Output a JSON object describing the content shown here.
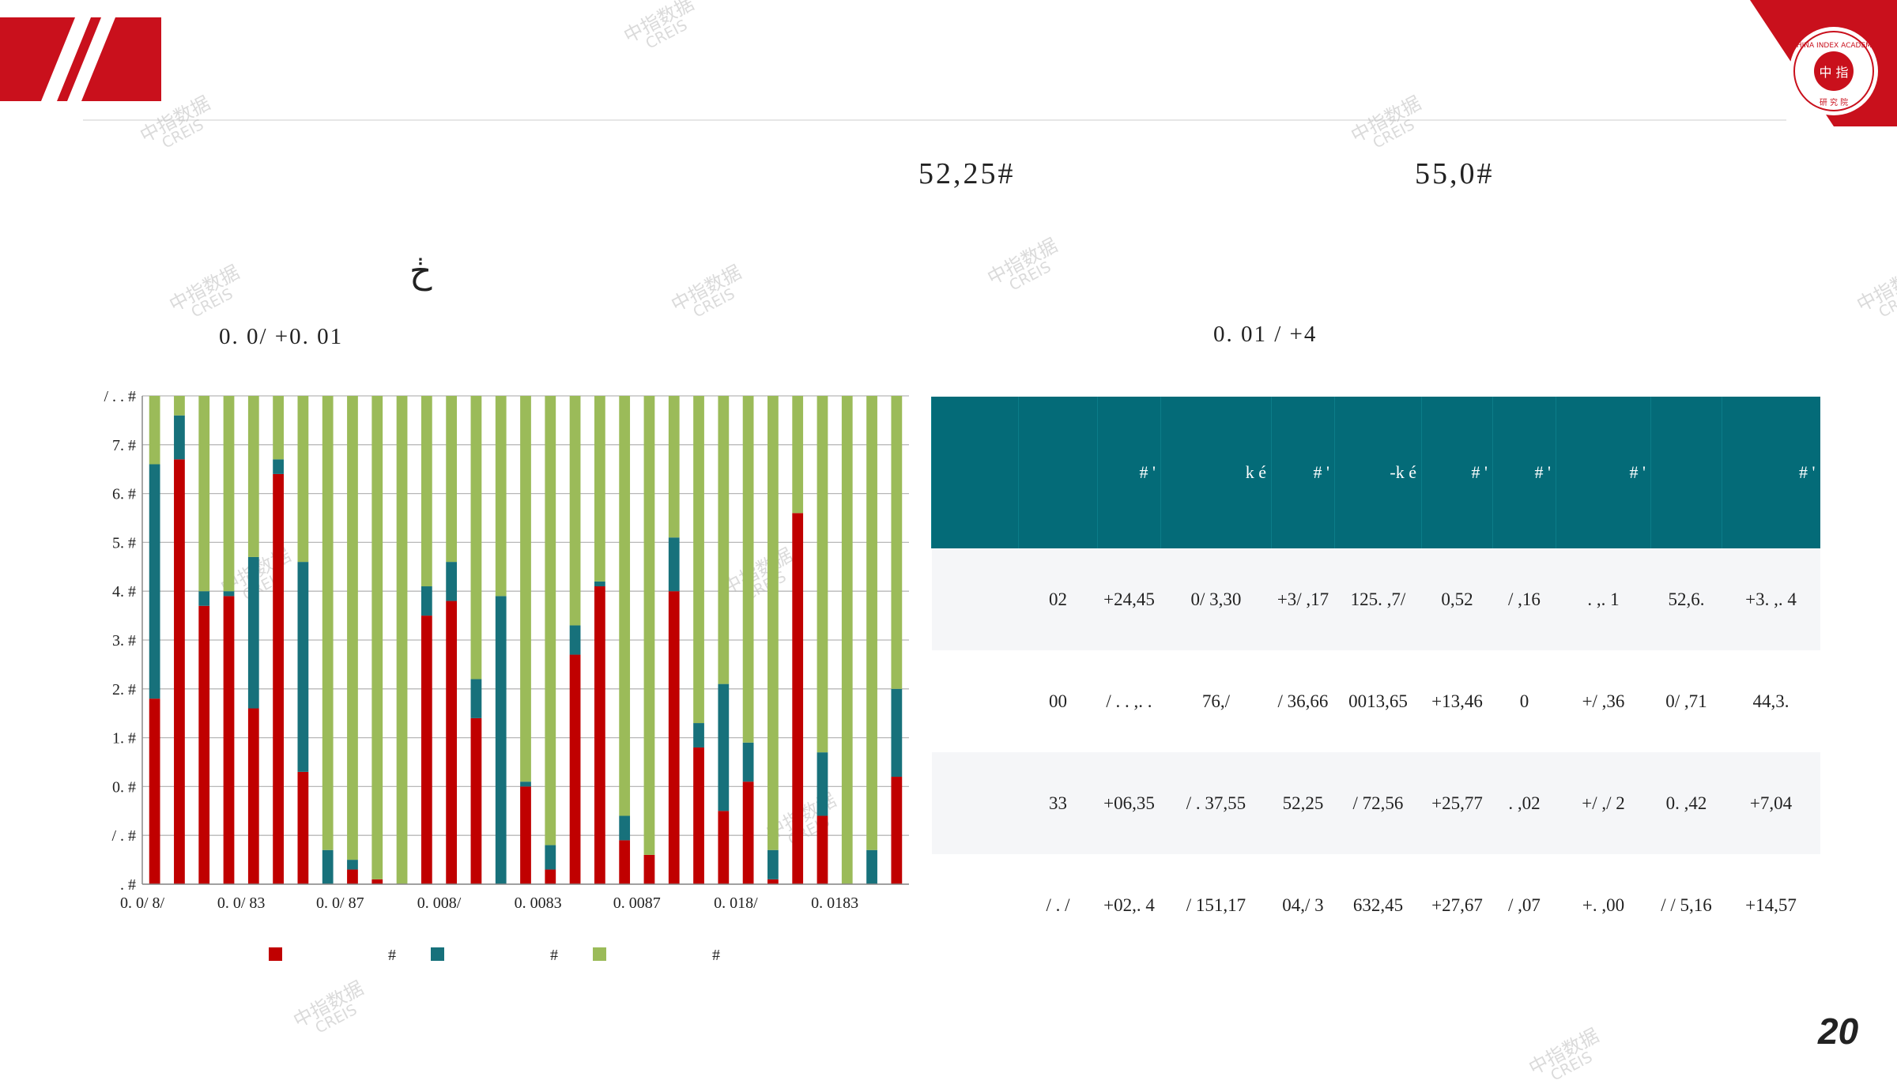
{
  "slide": {
    "stat_left": "52,25#",
    "stat_right": "55,0#",
    "glyph": "ڂ",
    "chart_subtitle": "0. 0/ +0. 01",
    "table_subtitle": "0. 01 / +4",
    "page_number": "20"
  },
  "watermark": {
    "cn": "中指数据",
    "en": "CREIS"
  },
  "badge": {
    "ring_text": "CHINA INDEX ACADEMY",
    "bottom_text": "研 究 院",
    "center_text": "中 指"
  },
  "colors": {
    "red": "#c00000",
    "teal": "#17717b",
    "green": "#9bbb59",
    "table_header": "#046b78",
    "brand_red": "#c9101c"
  },
  "chart_data": {
    "type": "bar",
    "stacked": true,
    "y_tick_labels": [
      ". #",
      "/ . #",
      "0. #",
      "1. #",
      "2. #",
      "3. #",
      "4. #",
      "5. #",
      "6. #",
      "7. #",
      "/ . . #"
    ],
    "x_tick_labels": [
      "0. 0/ 8/",
      "0. 0/ 83",
      "0. 0/ 87",
      "0. 008/",
      "0. 0083",
      "0. 0087",
      "0. 018/",
      "0. 0183"
    ],
    "ylim": [
      0,
      100
    ],
    "grid": true,
    "legend_position": "bottom",
    "legend_labels": [
      "#",
      "#",
      "#"
    ],
    "series": [
      {
        "values": [
          38,
          87,
          57,
          59,
          36,
          84,
          23,
          0,
          3,
          1,
          0,
          55,
          58,
          34,
          0,
          20,
          3,
          47,
          61,
          9,
          6,
          60,
          28,
          15,
          21,
          1,
          76,
          14,
          0,
          0,
          22
        ]
      },
      {
        "values": [
          48,
          9,
          3,
          1,
          31,
          3,
          43,
          7,
          2,
          0,
          0,
          6,
          8,
          8,
          59,
          1,
          5,
          6,
          1,
          5,
          0,
          11,
          5,
          26,
          8,
          6,
          0,
          13,
          0,
          7,
          18
        ]
      },
      {
        "values": [
          14,
          4,
          40,
          40,
          33,
          13,
          34,
          93,
          95,
          99,
          100,
          39,
          34,
          58,
          41,
          79,
          92,
          47,
          38,
          86,
          94,
          29,
          67,
          59,
          71,
          93,
          24,
          73,
          100,
          93,
          60
        ]
      }
    ]
  },
  "table": {
    "headers": [
      "",
      "",
      "# '",
      "k é",
      "# '",
      "-k é",
      "# '",
      "# '",
      "# '",
      "",
      "# '"
    ],
    "rows": [
      [
        "02",
        "+24,45",
        "0/ 3,30",
        "+3/ ,17",
        "125. ,7/",
        "0,52",
        "/ ,16",
        ". ,. 1",
        "52,6.",
        "+3. ,. 4"
      ],
      [
        "00",
        "/ . . ,. .",
        "76,/",
        "/ 36,66",
        "0013,65",
        "+13,46",
        "0",
        "+/ ,36",
        "0/ ,71",
        "44,3."
      ],
      [
        "33",
        "+06,35",
        "/ . 37,55",
        "52,25",
        "/ 72,56",
        "+25,77",
        ". ,02",
        "+/ ,/ 2",
        "0. ,42",
        "+7,04"
      ],
      [
        "/ . /",
        "+02,. 4",
        "/ 151,17",
        "04,/ 3",
        "632,45",
        "+27,67",
        "/ ,07",
        "+. ,00",
        "/ / 5,16",
        "+14,57"
      ]
    ]
  }
}
